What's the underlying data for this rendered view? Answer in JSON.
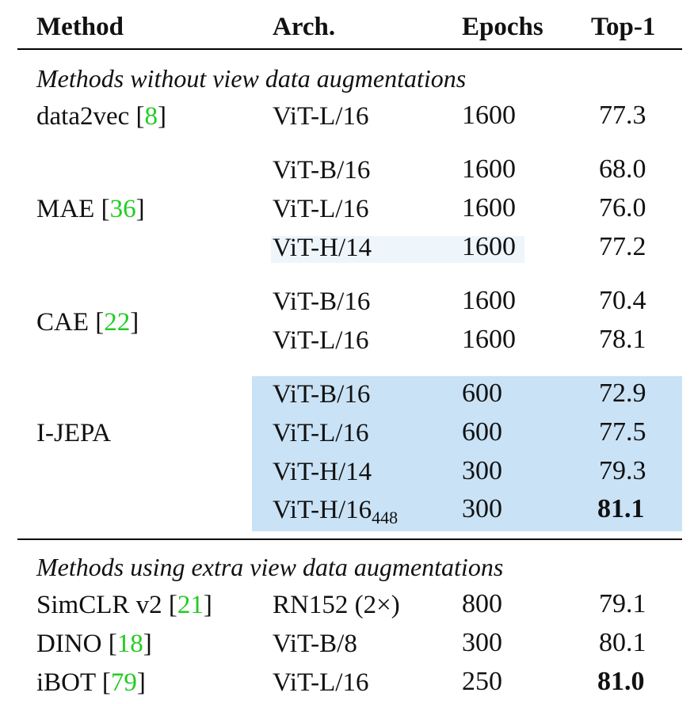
{
  "header": {
    "method": "Method",
    "arch": "Arch.",
    "epochs": "Epochs",
    "top1": "Top-1"
  },
  "sections": {
    "without": "Methods without view data augmentations",
    "with": "Methods using extra view data augmentations"
  },
  "groups": {
    "data2vec": {
      "name": "data2vec",
      "ref": "8"
    },
    "mae": {
      "name": "MAE",
      "ref": "36"
    },
    "cae": {
      "name": "CAE",
      "ref": "22"
    },
    "ijepa": {
      "name": "I-JEPA"
    },
    "simclr": {
      "name": "SimCLR v2",
      "ref": "21"
    },
    "dino": {
      "name": "DINO",
      "ref": "18"
    },
    "ibot": {
      "name": "iBOT",
      "ref": "79"
    }
  },
  "rows": {
    "data2vec_l16": {
      "arch": "ViT-L/16",
      "epochs": "1600",
      "top1": "77.3"
    },
    "mae_b16": {
      "arch": "ViT-B/16",
      "epochs": "1600",
      "top1": "68.0"
    },
    "mae_l16": {
      "arch": "ViT-L/16",
      "epochs": "1600",
      "top1": "76.0"
    },
    "mae_h14": {
      "arch": "ViT-H/14",
      "epochs": "1600",
      "top1": "77.2"
    },
    "cae_b16": {
      "arch": "ViT-B/16",
      "epochs": "1600",
      "top1": "70.4"
    },
    "cae_l16": {
      "arch": "ViT-L/16",
      "epochs": "1600",
      "top1": "78.1"
    },
    "ijepa_b16": {
      "arch": "ViT-B/16",
      "epochs": "600",
      "top1": "72.9"
    },
    "ijepa_l16": {
      "arch": "ViT-L/16",
      "epochs": "600",
      "top1": "77.5"
    },
    "ijepa_h14": {
      "arch": "ViT-H/14",
      "epochs": "300",
      "top1": "79.3"
    },
    "ijepa_h16": {
      "arch": "ViT-H/16",
      "arch_sub": "448",
      "epochs": "300",
      "top1": "81.1"
    },
    "simclr_rn152": {
      "arch": "RN152 (2×)",
      "epochs": "800",
      "top1": "79.1"
    },
    "dino_b8": {
      "arch": "ViT-B/8",
      "epochs": "300",
      "top1": "80.1"
    },
    "ibot_l16": {
      "arch": "ViT-L/16",
      "epochs": "250",
      "top1": "81.0"
    }
  },
  "colors": {
    "highlight": "#c9e2f6",
    "reference": "#22cc22"
  }
}
